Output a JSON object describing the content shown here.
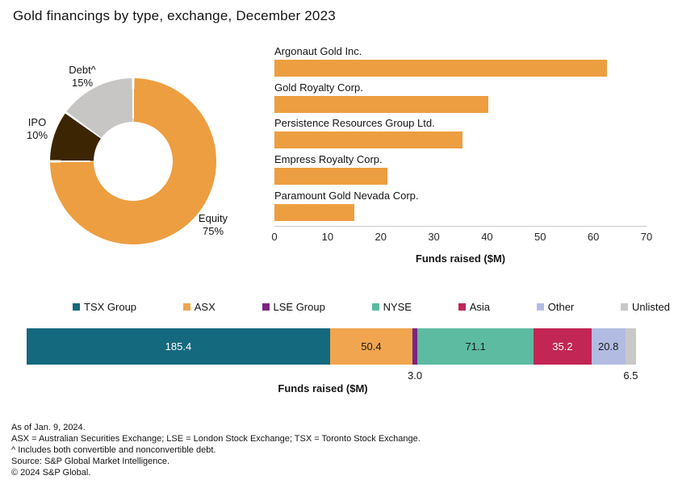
{
  "title": "Gold financings by type, exchange, December 2023",
  "donut": {
    "slices": [
      {
        "label": "Equity",
        "pct_label": "75%",
        "value": 75,
        "color": "#ED9E40"
      },
      {
        "label": "IPO",
        "pct_label": "10%",
        "value": 10,
        "color": "#3B2503"
      },
      {
        "label": "Debt^",
        "pct_label": "15%",
        "value": 15,
        "color": "#C7C6C4"
      }
    ]
  },
  "bar_chart": {
    "rows": [
      {
        "label": "Argonaut Gold Inc.",
        "value": 62.5
      },
      {
        "label": "Gold Royalty Corp.",
        "value": 40.2
      },
      {
        "label": "Persistence Resources Group Ltd.",
        "value": 35.4
      },
      {
        "label": "Empress Royalty Corp.",
        "value": 21.2
      },
      {
        "label": "Paramount Gold Nevada Corp.",
        "value": 15.1
      }
    ],
    "bar_color": "#ED9E40",
    "ticks": [
      "0",
      "10",
      "20",
      "30",
      "40",
      "50",
      "60",
      "70"
    ],
    "xmax": 70,
    "xlabel": "Funds raised ($M)"
  },
  "stacked": {
    "segments": [
      {
        "name": "TSX Group",
        "value": 185.4,
        "label": "185.4",
        "color": "#14697E",
        "label_color": "#FFFFFF",
        "label_position": "inside"
      },
      {
        "name": "ASX",
        "value": 50.4,
        "label": "50.4",
        "color": "#F0A54E",
        "label_color": "#1A1A1A",
        "label_position": "inside"
      },
      {
        "name": "LSE Group",
        "value": 3.0,
        "label": "3.0",
        "color": "#7C2482",
        "label_color": "#1A1A1A",
        "label_position": "below"
      },
      {
        "name": "NYSE",
        "value": 71.1,
        "label": "71.1",
        "color": "#5CBBA1",
        "label_color": "#1A1A1A",
        "label_position": "inside"
      },
      {
        "name": "Asia",
        "value": 35.2,
        "label": "35.2",
        "color": "#C22655",
        "label_color": "#FFFFFF",
        "label_position": "inside"
      },
      {
        "name": "Other",
        "value": 20.8,
        "label": "20.8",
        "color": "#B2BCE3",
        "label_color": "#1A1A1A",
        "label_position": "inside"
      },
      {
        "name": "Unlisted",
        "value": 6.5,
        "label": "6.5",
        "color": "#C8C8C8",
        "label_color": "#1A1A1A",
        "label_position": "below"
      }
    ],
    "xlabel": "Funds raised ($M)"
  },
  "footnotes": [
    "As of Jan. 9, 2024.",
    "ASX = Australian Securities Exchange; LSE = London Stock Exchange; TSX = Toronto Stock Exchange.",
    "^ Includes both convertible and nonconvertible debt.",
    "Source: S&P Global Market Intelligence.",
    "© 2024 S&P Global."
  ],
  "chart_data": [
    {
      "type": "pie",
      "donut": true,
      "labels": [
        "Equity",
        "IPO",
        "Debt^"
      ],
      "values": [
        75,
        10,
        15
      ],
      "unit": "%",
      "colors": [
        "#ED9E40",
        "#3B2503",
        "#C7C6C4"
      ],
      "start_angle": "top",
      "direction": "clockwise"
    },
    {
      "type": "bar",
      "orientation": "horizontal",
      "categories": [
        "Argonaut Gold Inc.",
        "Gold Royalty Corp.",
        "Persistence Resources Group Ltd.",
        "Empress Royalty Corp.",
        "Paramount Gold Nevada Corp."
      ],
      "values": [
        62.5,
        40.2,
        35.4,
        21.2,
        15.1
      ],
      "xlabel": "Funds raised ($M)",
      "xlim": [
        0,
        70
      ],
      "tick_step": 10,
      "bar_color": "#ED9E40",
      "gridlines": false
    },
    {
      "type": "bar",
      "stacked": true,
      "orientation": "horizontal",
      "series": [
        {
          "name": "TSX Group",
          "value": 185.4
        },
        {
          "name": "ASX",
          "value": 50.4
        },
        {
          "name": "LSE Group",
          "value": 3.0
        },
        {
          "name": "NYSE",
          "value": 71.1
        },
        {
          "name": "Asia",
          "value": 35.2
        },
        {
          "name": "Other",
          "value": 20.8
        },
        {
          "name": "Unlisted",
          "value": 6.5
        }
      ],
      "xlabel": "Funds raised ($M)",
      "legend_position": "top"
    }
  ]
}
